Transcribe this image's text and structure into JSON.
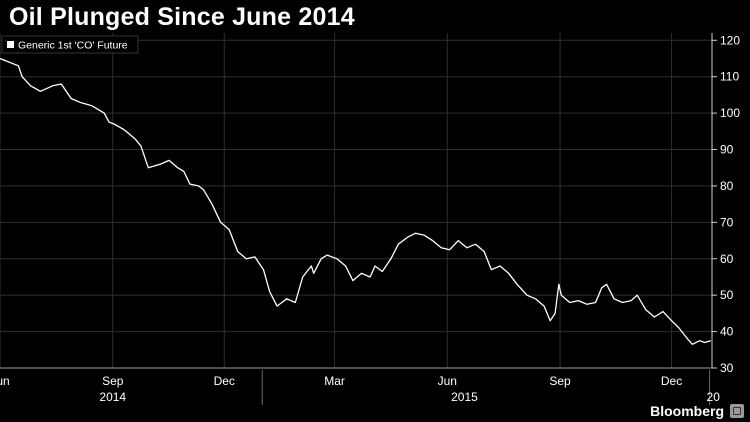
{
  "chart_data": {
    "type": "line",
    "title": "Oil Plunged Since June 2014",
    "legend": "Generic 1st 'CO' Future",
    "legend_position": "top-left",
    "ylim": [
      30,
      122
    ],
    "yticks": [
      30,
      40,
      50,
      60,
      70,
      80,
      90,
      100,
      110,
      120
    ],
    "xlim": [
      "2014-06-01",
      "2016-01-03"
    ],
    "grid": true,
    "month_ticks": [
      {
        "label": "Jun",
        "date": "2014-06-01"
      },
      {
        "label": "Sep",
        "date": "2014-09-01"
      },
      {
        "label": "Dec",
        "date": "2014-12-01"
      },
      {
        "label": "Mar",
        "date": "2015-03-01"
      },
      {
        "label": "Jun",
        "date": "2015-06-01"
      },
      {
        "label": "Sep",
        "date": "2015-09-01"
      },
      {
        "label": "Dec",
        "date": "2015-12-01"
      }
    ],
    "year_labels": [
      {
        "label": "2014",
        "date": "2014-09-01"
      },
      {
        "label": "2015",
        "date": "2015-06-15"
      },
      {
        "label": "20",
        "date": "2016-01-04"
      }
    ],
    "year_separators": [
      "2015-01-01",
      "2016-01-01"
    ],
    "series": [
      {
        "name": "Generic 1st 'CO' Future",
        "color": "#ffffff",
        "points": [
          [
            "2014-06-01",
            115
          ],
          [
            "2014-06-16",
            113
          ],
          [
            "2014-06-19",
            110
          ],
          [
            "2014-06-26",
            107.5
          ],
          [
            "2014-07-04",
            106
          ],
          [
            "2014-07-14",
            107.5
          ],
          [
            "2014-07-21",
            108
          ],
          [
            "2014-07-29",
            104
          ],
          [
            "2014-08-05",
            103
          ],
          [
            "2014-08-15",
            102
          ],
          [
            "2014-08-25",
            100
          ],
          [
            "2014-08-29",
            97.5
          ],
          [
            "2014-09-02",
            97
          ],
          [
            "2014-09-10",
            95.5
          ],
          [
            "2014-09-19",
            93
          ],
          [
            "2014-09-24",
            91
          ],
          [
            "2014-09-30",
            85
          ],
          [
            "2014-10-10",
            86
          ],
          [
            "2014-10-17",
            87
          ],
          [
            "2014-10-24",
            85
          ],
          [
            "2014-10-29",
            84
          ],
          [
            "2014-11-03",
            80.5
          ],
          [
            "2014-11-10",
            80
          ],
          [
            "2014-11-14",
            79
          ],
          [
            "2014-11-21",
            75
          ],
          [
            "2014-11-28",
            70
          ],
          [
            "2014-12-05",
            68
          ],
          [
            "2014-12-12",
            62
          ],
          [
            "2014-12-19",
            60
          ],
          [
            "2014-12-26",
            60.5
          ],
          [
            "2015-01-02",
            57
          ],
          [
            "2015-01-07",
            51
          ],
          [
            "2015-01-13",
            47
          ],
          [
            "2015-01-21",
            49
          ],
          [
            "2015-01-28",
            48
          ],
          [
            "2015-02-03",
            55
          ],
          [
            "2015-02-10",
            58
          ],
          [
            "2015-02-12",
            56
          ],
          [
            "2015-02-18",
            60
          ],
          [
            "2015-02-23",
            61
          ],
          [
            "2015-03-03",
            60
          ],
          [
            "2015-03-10",
            58
          ],
          [
            "2015-03-16",
            54
          ],
          [
            "2015-03-23",
            56
          ],
          [
            "2015-03-30",
            55
          ],
          [
            "2015-04-03",
            58
          ],
          [
            "2015-04-09",
            56.5
          ],
          [
            "2015-04-16",
            60
          ],
          [
            "2015-04-22",
            64
          ],
          [
            "2015-04-30",
            66
          ],
          [
            "2015-05-06",
            67
          ],
          [
            "2015-05-13",
            66.5
          ],
          [
            "2015-05-20",
            65
          ],
          [
            "2015-05-27",
            63
          ],
          [
            "2015-06-03",
            62.5
          ],
          [
            "2015-06-10",
            65
          ],
          [
            "2015-06-17",
            63
          ],
          [
            "2015-06-24",
            64
          ],
          [
            "2015-07-01",
            62
          ],
          [
            "2015-07-07",
            57
          ],
          [
            "2015-07-14",
            58
          ],
          [
            "2015-07-21",
            56
          ],
          [
            "2015-07-28",
            53
          ],
          [
            "2015-08-05",
            50
          ],
          [
            "2015-08-12",
            49
          ],
          [
            "2015-08-19",
            47
          ],
          [
            "2015-08-24",
            43
          ],
          [
            "2015-08-28",
            45
          ],
          [
            "2015-08-31",
            53
          ],
          [
            "2015-09-02",
            50
          ],
          [
            "2015-09-09",
            48
          ],
          [
            "2015-09-16",
            48.5
          ],
          [
            "2015-09-23",
            47.5
          ],
          [
            "2015-09-30",
            48
          ],
          [
            "2015-10-05",
            52
          ],
          [
            "2015-10-09",
            53
          ],
          [
            "2015-10-15",
            49
          ],
          [
            "2015-10-22",
            48
          ],
          [
            "2015-10-29",
            48.5
          ],
          [
            "2015-11-03",
            50
          ],
          [
            "2015-11-10",
            46
          ],
          [
            "2015-11-17",
            44
          ],
          [
            "2015-11-24",
            45.5
          ],
          [
            "2015-12-01",
            43
          ],
          [
            "2015-12-07",
            41
          ],
          [
            "2015-12-14",
            38
          ],
          [
            "2015-12-18",
            36.5
          ],
          [
            "2015-12-24",
            37.5
          ],
          [
            "2015-12-28",
            37
          ],
          [
            "2016-01-02",
            37.5
          ]
        ]
      }
    ]
  },
  "footer": {
    "brand": "Bloomberg"
  }
}
